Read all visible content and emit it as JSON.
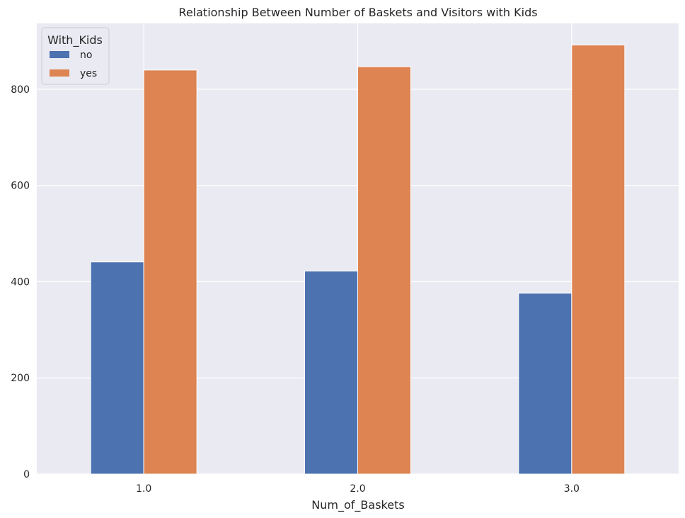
{
  "chart_data": {
    "type": "bar",
    "title": "Relationship Between Number of Baskets and Visitors with Kids",
    "xlabel": "Num_of_Baskets",
    "ylabel": "",
    "categories": [
      "1.0",
      "2.0",
      "3.0"
    ],
    "series": [
      {
        "name": "no",
        "values": [
          441,
          422,
          376
        ],
        "color": "#4c72b0"
      },
      {
        "name": "yes",
        "values": [
          840,
          847,
          892
        ],
        "color": "#dd8452"
      }
    ],
    "ylim": [
      0,
      937
    ],
    "yticks": [
      0,
      200,
      400,
      600,
      800
    ],
    "legend": {
      "title": "With_Kids",
      "position": "top-left"
    },
    "grid": true,
    "colors": {
      "background": "#eaeaf2",
      "grid": "#ffffff",
      "text": "#262626"
    }
  }
}
